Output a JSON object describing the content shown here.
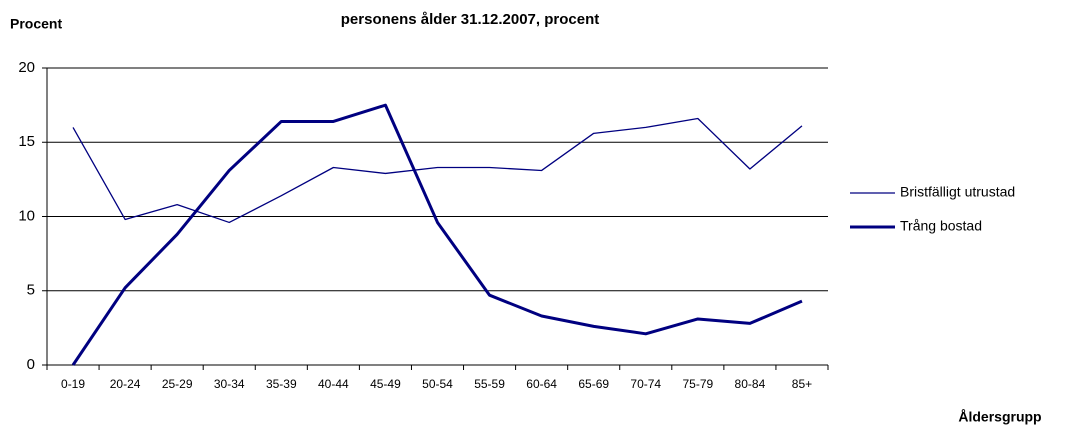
{
  "chart_data": {
    "type": "line",
    "title": "personens ålder 31.12.2007, procent",
    "y_label": "Procent",
    "x_label": "Åldersgrupp",
    "categories": [
      "0-19",
      "20-24",
      "25-29",
      "30-34",
      "35-39",
      "40-44",
      "45-49",
      "50-54",
      "55-59",
      "60-64",
      "65-69",
      "70-74",
      "75-79",
      "80-84",
      "85+"
    ],
    "series": [
      {
        "name": "Bristfälligt utrustad",
        "color": "#000080",
        "width": 1.3,
        "values": [
          16.0,
          9.8,
          10.8,
          9.6,
          11.4,
          13.3,
          12.9,
          13.3,
          13.3,
          13.1,
          15.6,
          16.0,
          16.6,
          13.2,
          16.1
        ]
      },
      {
        "name": "Trång bostad",
        "color": "#000080",
        "width": 3,
        "values": [
          0,
          5.2,
          8.8,
          13.1,
          16.4,
          16.4,
          17.5,
          9.6,
          4.7,
          3.3,
          2.6,
          2.1,
          3.1,
          2.8,
          4.3
        ]
      }
    ],
    "ylim": [
      0,
      20
    ],
    "yticks": [
      0,
      5,
      10,
      15,
      20
    ],
    "grid": true,
    "legend": "right"
  }
}
